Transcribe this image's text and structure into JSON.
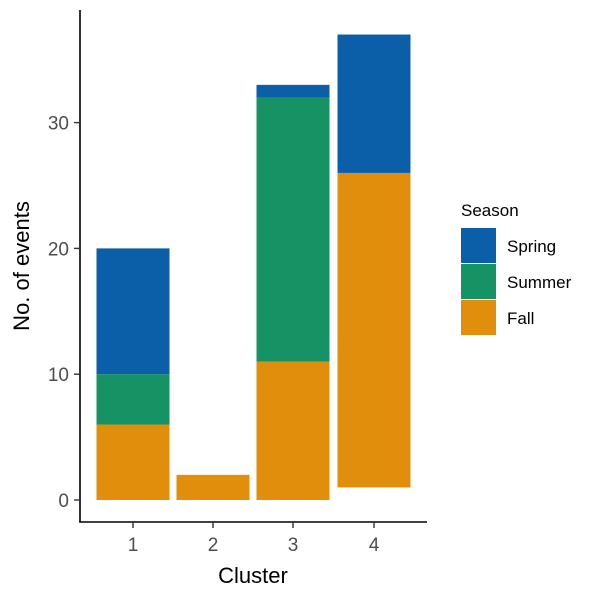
{
  "chart_data": {
    "type": "bar",
    "stacked": true,
    "xlabel": "Cluster",
    "ylabel": "No. of events",
    "categories": [
      "1",
      "2",
      "3",
      "4"
    ],
    "ylim": [
      0,
      37
    ],
    "yticks": [
      0,
      10,
      20,
      30
    ],
    "grid": false,
    "legend": {
      "title": "Season",
      "position": "right",
      "entries": [
        "Spring",
        "Summer",
        "Fall"
      ]
    },
    "series": [
      {
        "name": "Fall",
        "color": "#E08E0B",
        "segments": [
          [
            0,
            6
          ],
          [
            0,
            2
          ],
          [
            0,
            11
          ],
          [
            1,
            26
          ]
        ]
      },
      {
        "name": "Summer",
        "color": "#159364",
        "segments": [
          [
            6,
            10
          ],
          [
            2,
            2
          ],
          [
            11,
            32
          ],
          [
            26,
            26
          ]
        ]
      },
      {
        "name": "Spring",
        "color": "#0B5EA8",
        "segments": [
          [
            10,
            20
          ],
          [
            2,
            2
          ],
          [
            32,
            33
          ],
          [
            26,
            37
          ]
        ]
      }
    ]
  }
}
